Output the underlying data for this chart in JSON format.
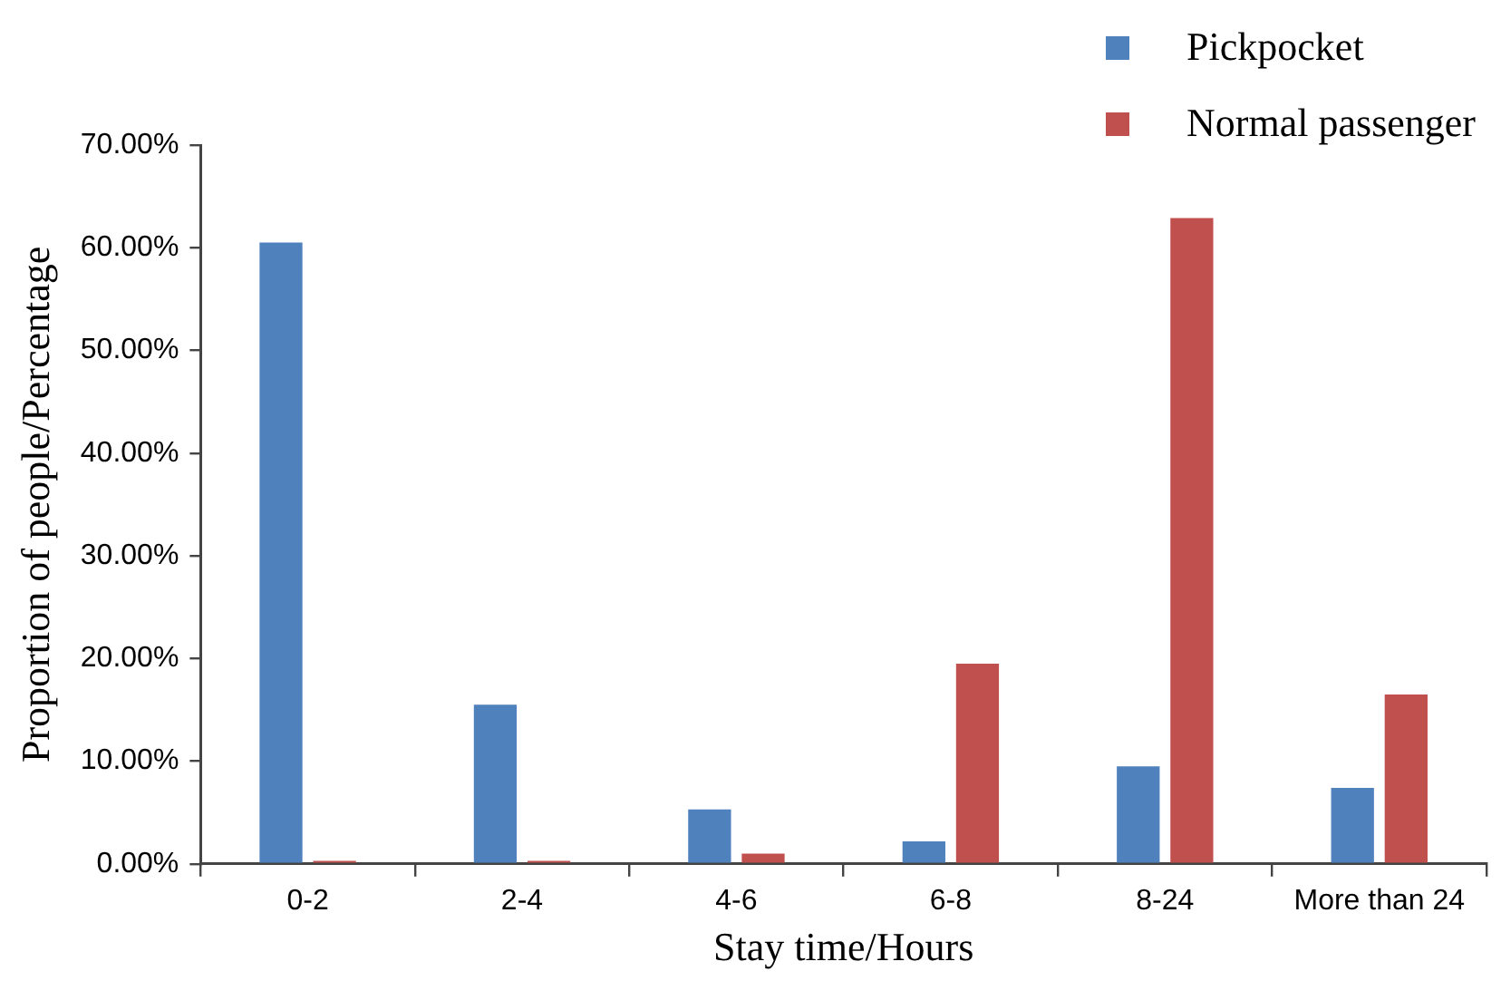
{
  "chart_data": {
    "type": "bar",
    "xlabel": "Stay time/Hours",
    "ylabel": "Proportion of people/Percentage",
    "categories": [
      "0-2",
      "2-4",
      "4-6",
      "6-8",
      "8-24",
      "More than 24"
    ],
    "series": [
      {
        "name": "Pickpocket",
        "color": "#4f81bd",
        "values": [
          60.5,
          15.5,
          5.3,
          2.2,
          9.5,
          7.4
        ]
      },
      {
        "name": "Normal passenger",
        "color": "#c0504d",
        "values": [
          0.3,
          0.3,
          1.0,
          19.5,
          62.9,
          16.5
        ]
      }
    ],
    "ylim": [
      0,
      70
    ],
    "yticks": [
      {
        "value": 0,
        "label": "0.00%"
      },
      {
        "value": 10,
        "label": "10.00%"
      },
      {
        "value": 20,
        "label": "20.00%"
      },
      {
        "value": 30,
        "label": "30.00%"
      },
      {
        "value": 40,
        "label": "40.00%"
      },
      {
        "value": 50,
        "label": "50.00%"
      },
      {
        "value": 60,
        "label": "60.00%"
      },
      {
        "value": 70,
        "label": "70.00%"
      }
    ],
    "grid": false,
    "legend": "top right"
  }
}
